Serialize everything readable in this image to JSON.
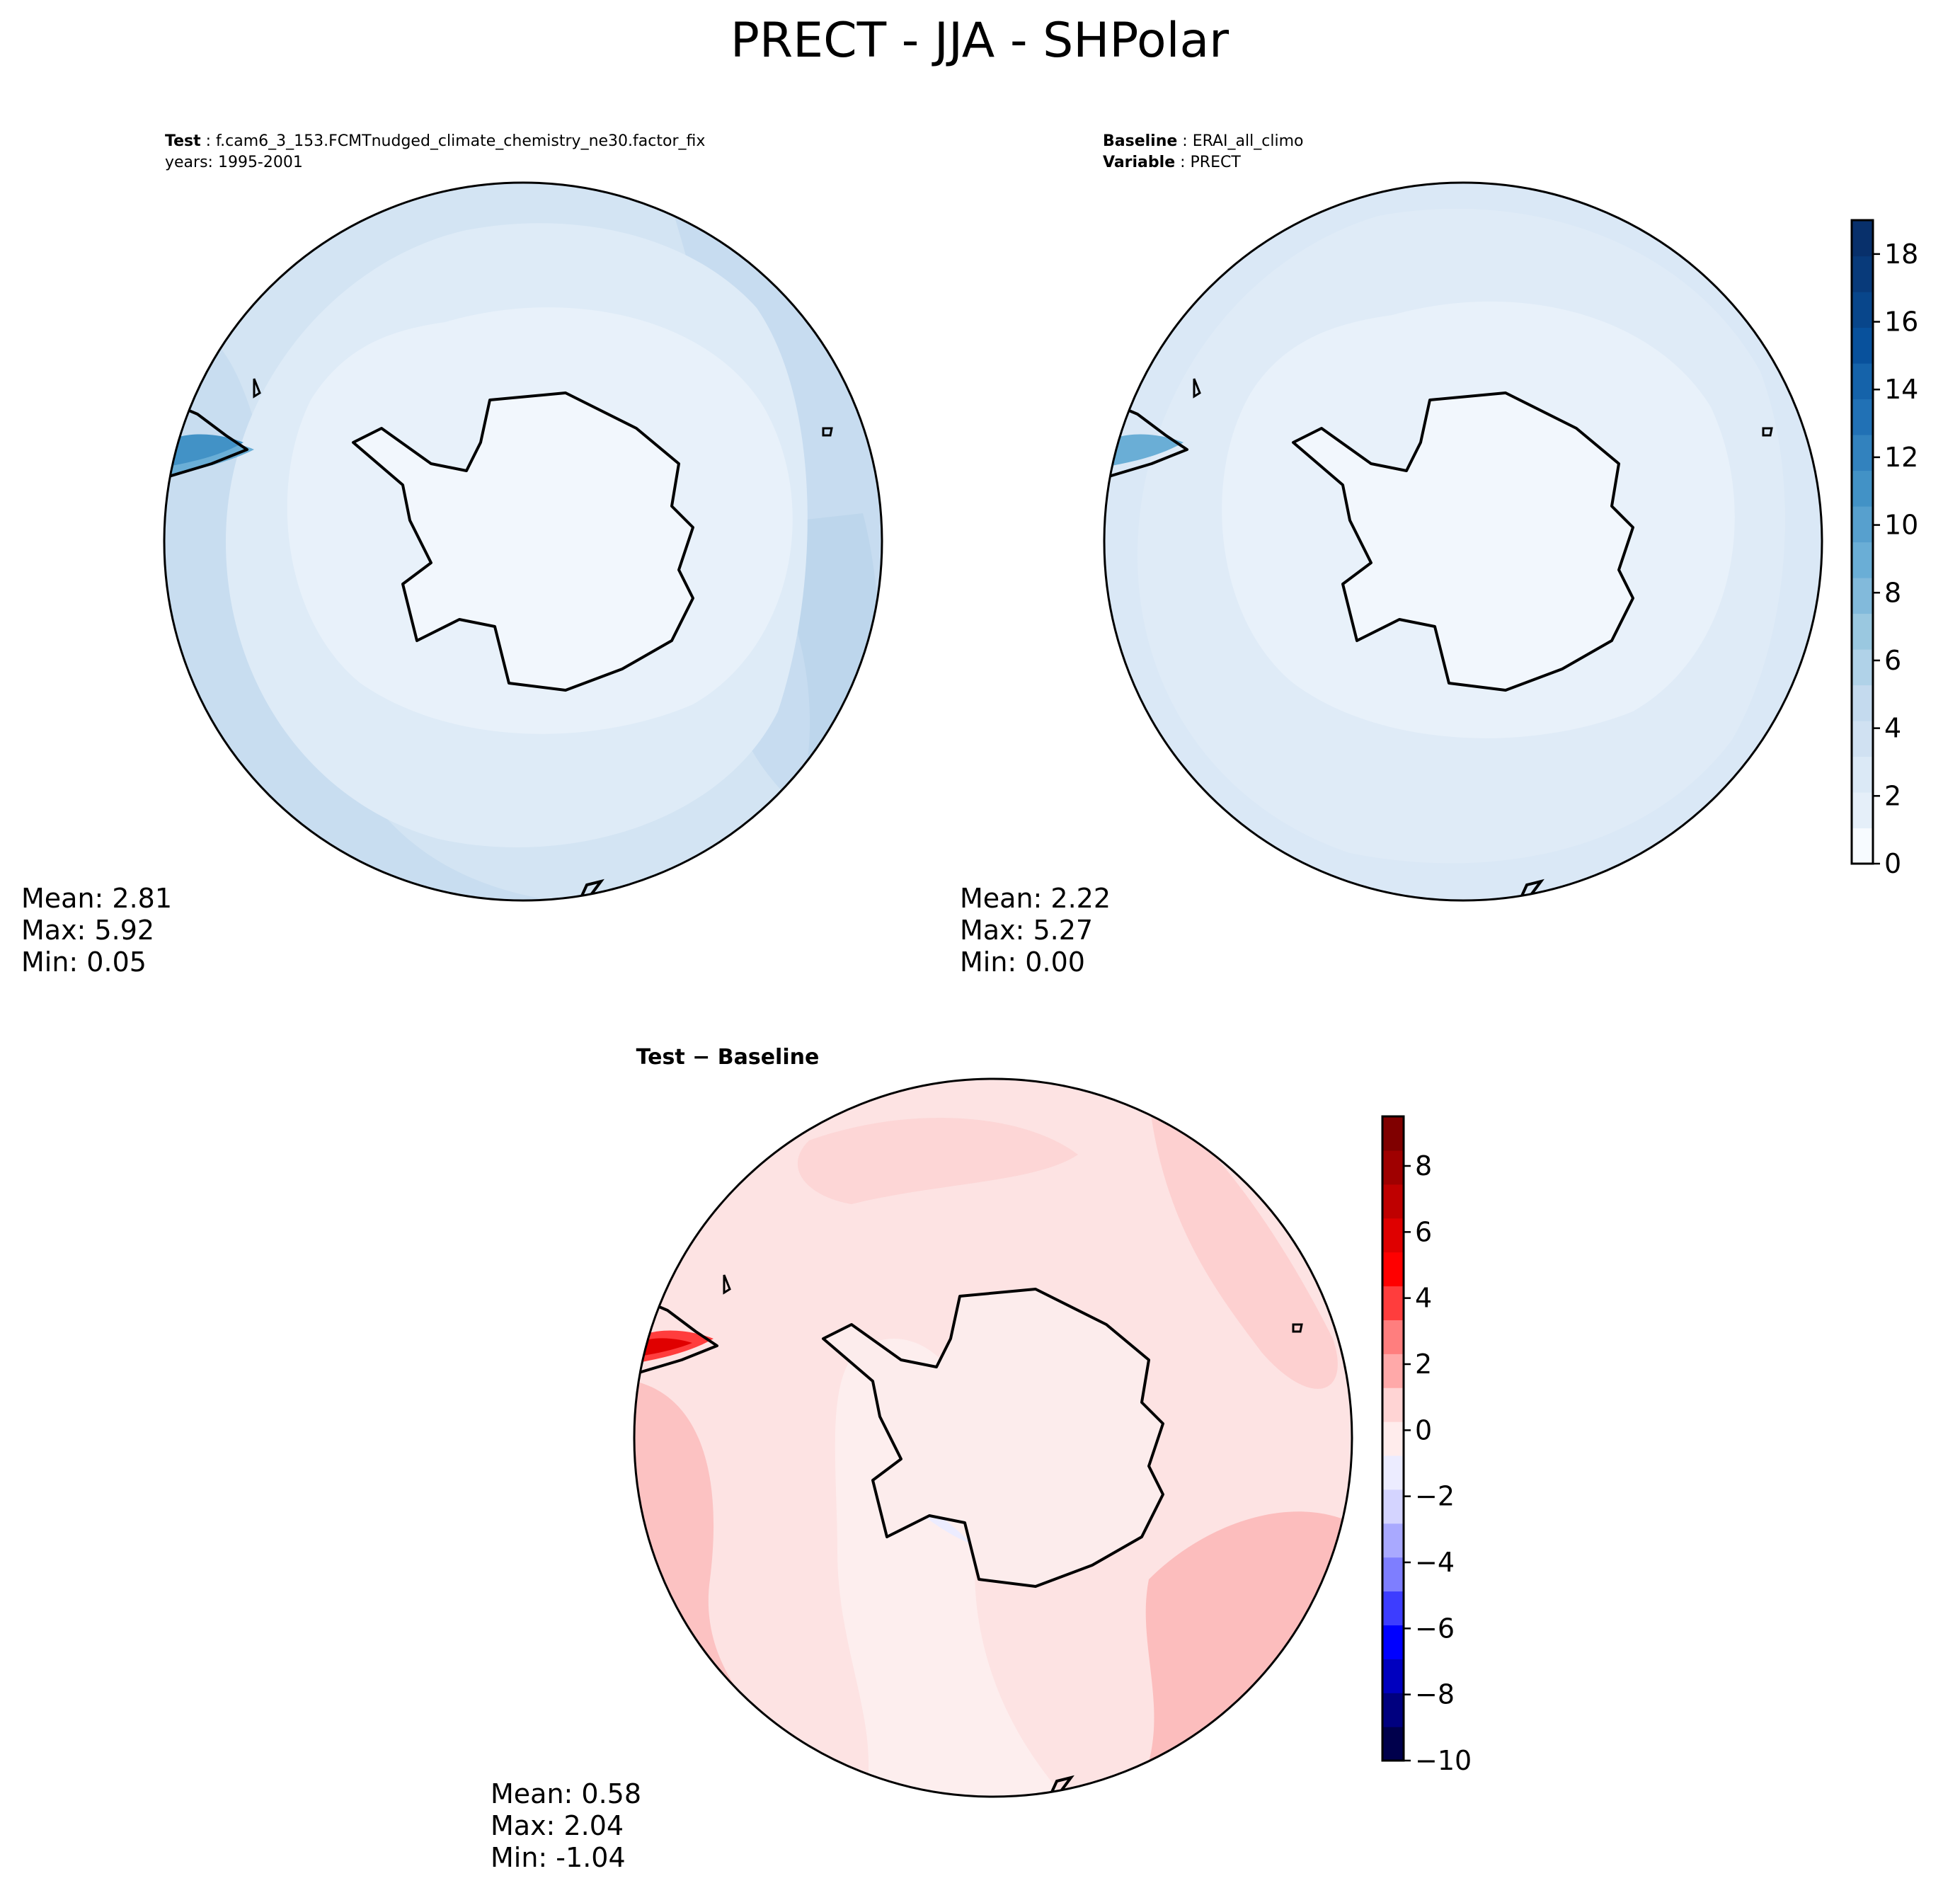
{
  "figure": {
    "title": "PRECT - JJA - SHPolar"
  },
  "panels": {
    "test": {
      "label_key": "Test",
      "label_value": "f.cam6_3_153.FCMTnudged_climate_chemistry_ne30.factor_fix",
      "line2": "years: 1995-2001",
      "stats": {
        "mean": "Mean:  2.81",
        "max": "Max:  5.92",
        "min": "Min:  0.05"
      }
    },
    "baseline": {
      "label_key": "Baseline",
      "label_value": "ERAI_all_climo",
      "line2_key": "Variable",
      "line2_value": "PRECT",
      "stats": {
        "mean": "Mean:  2.22",
        "max": "Max:  5.27",
        "min": "Min:  0.00"
      }
    },
    "diff": {
      "title": "Test − Baseline",
      "stats": {
        "mean": "Mean:  0.58",
        "max": "Max:  2.04",
        "min": "Min: -1.04"
      }
    }
  },
  "colors": {
    "blues": [
      "#f7fbff",
      "#e5eff9",
      "#dbe9f6",
      "#d0e1f2",
      "#c4daee",
      "#b0d2e8",
      "#9ac8e0",
      "#82badb",
      "#6aaed6",
      "#57a0ce",
      "#4292c6",
      "#3282be",
      "#2171b5",
      "#1563aa",
      "#08519c",
      "#08468b",
      "#083a7a",
      "#08306b"
    ],
    "seismic": [
      "#00004c",
      "#00007f",
      "#0000bf",
      "#0000ff",
      "#3d3dff",
      "#7e7eff",
      "#a9a9ff",
      "#d4d4ff",
      "#ececff",
      "#ffecec",
      "#ffd4d4",
      "#ffa9a9",
      "#ff7e7e",
      "#ff3d3d",
      "#ff0000",
      "#df0000",
      "#bf0000",
      "#9f0000",
      "#800000"
    ],
    "land_test": "#eef5fc",
    "land_base": "#f2f7fd",
    "land_diff": "#fcecec",
    "ocean_test": "#d6e6f4",
    "ocean_base": "#dde9f6",
    "ocean_diff": "#fdd6d6"
  },
  "chart_data": [
    {
      "type": "heatmap",
      "name": "Test",
      "projection": "south polar stereographic",
      "variable": "PRECT",
      "colorbar": {
        "ticks": [
          "0",
          "2",
          "4",
          "6",
          "8",
          "10",
          "12",
          "14",
          "16",
          "18"
        ],
        "vmin": 0,
        "vmax": 19,
        "levels": 19,
        "cmap": "Blues"
      },
      "stats": {
        "mean": 2.81,
        "max": 5.92,
        "min": 0.05
      }
    },
    {
      "type": "heatmap",
      "name": "Baseline",
      "projection": "south polar stereographic",
      "variable": "PRECT",
      "colorbar": {
        "ticks": [
          "0",
          "2",
          "4",
          "6",
          "8",
          "10",
          "12",
          "14",
          "16",
          "18"
        ],
        "vmin": 0,
        "vmax": 19,
        "levels": 19,
        "cmap": "Blues"
      },
      "stats": {
        "mean": 2.22,
        "max": 5.27,
        "min": 0.0
      }
    },
    {
      "type": "heatmap",
      "name": "Test − Baseline",
      "projection": "south polar stereographic",
      "colorbar": {
        "ticks": [
          "8",
          "6",
          "4",
          "2",
          "0",
          "−2",
          "−4",
          "−6",
          "−8",
          "−10"
        ],
        "tick_values": [
          8,
          6,
          4,
          2,
          0,
          -2,
          -4,
          -6,
          -8,
          -10
        ],
        "vmin": -10,
        "vmax": 9.5,
        "cmap": "seismic"
      },
      "stats": {
        "mean": 0.58,
        "max": 2.04,
        "min": -1.04
      }
    }
  ]
}
